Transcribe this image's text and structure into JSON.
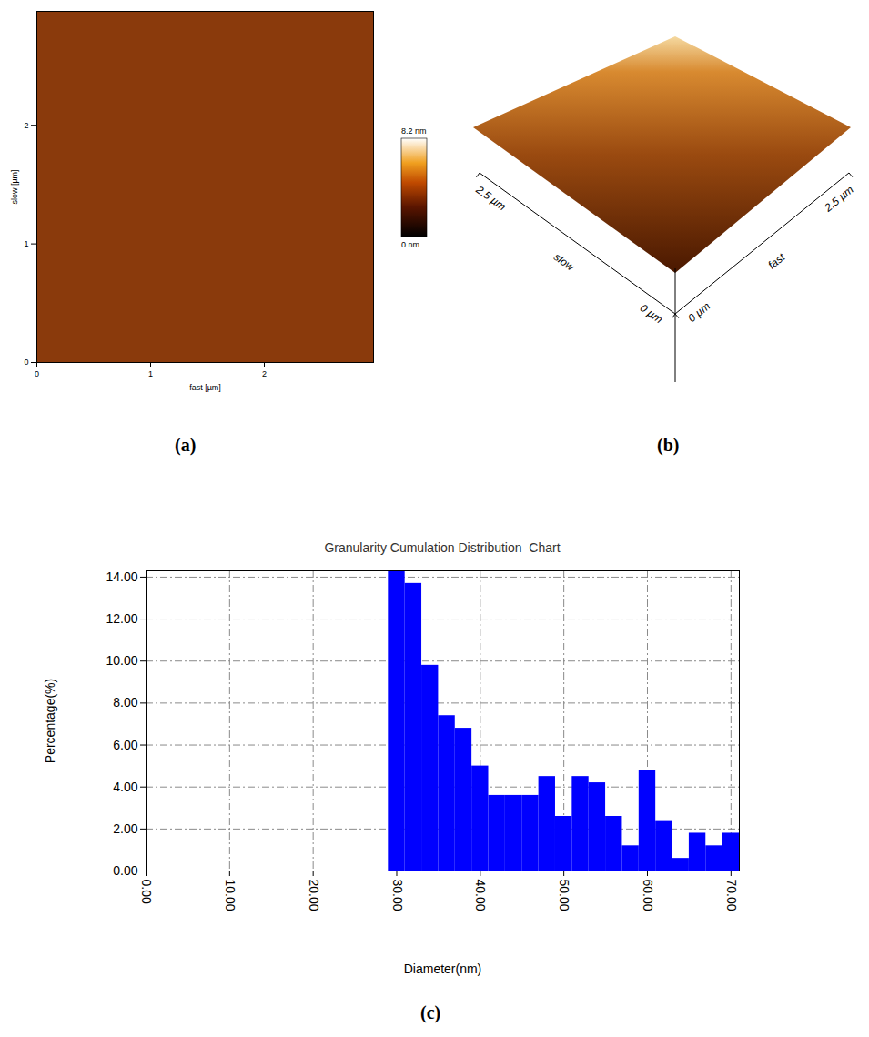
{
  "chart_data": [
    {
      "panel": "(a)",
      "type": "image",
      "x_label": "fast [µm]",
      "y_label": "slow [µm]",
      "xlim": [
        0,
        2.96
      ],
      "ylim": [
        0,
        2.96
      ],
      "xticks": [
        0,
        1,
        2
      ],
      "yticks": [
        0,
        1,
        2
      ],
      "colorbar": {
        "range": [
          0,
          8.2
        ],
        "ticks": [
          {
            "value": 0,
            "label": "0 nm"
          },
          {
            "value": 8.2,
            "label": "8.2 nm"
          }
        ]
      }
    },
    {
      "panel": "(b)",
      "type": "surface",
      "x_label": "fast",
      "y_label": "slow",
      "xlim": [
        0,
        2.5
      ],
      "ylim": [
        0,
        2.5
      ],
      "xticks": [
        {
          "value": 0,
          "label": "0 µm"
        },
        {
          "value": 2.5,
          "label": "2.5 µm"
        }
      ],
      "yticks": [
        {
          "value": 0,
          "label": "0 µm"
        },
        {
          "value": 2.5,
          "label": "2.5 µm"
        }
      ]
    },
    {
      "panel": "(c)",
      "type": "histogram",
      "title": "Granularity Cumulation Distribution  Chart",
      "x_label": "Diameter(nm)",
      "y_label": "Percentage(%)",
      "bins": [
        29,
        31,
        33,
        35,
        37,
        39,
        41,
        43,
        45,
        47,
        49,
        51,
        53,
        55,
        57,
        59,
        61,
        63,
        65,
        67,
        69,
        71
      ],
      "values": [
        14.3,
        13.7,
        9.8,
        7.4,
        6.8,
        5.0,
        3.6,
        3.6,
        3.6,
        4.5,
        2.6,
        4.5,
        4.2,
        2.6,
        1.2,
        4.8,
        2.4,
        0.6,
        1.8,
        1.2,
        1.8
      ],
      "color": "#0000ff",
      "xlim": [
        0,
        71
      ],
      "ylim": [
        0,
        14.3
      ],
      "xticks": [
        {
          "value": 0,
          "label": "0.00"
        },
        {
          "value": 10,
          "label": "10.00"
        },
        {
          "value": 20,
          "label": "20.00"
        },
        {
          "value": 30,
          "label": "30.00"
        },
        {
          "value": 40,
          "label": "40.00"
        },
        {
          "value": 50,
          "label": "50.00"
        },
        {
          "value": 60,
          "label": "60.00"
        },
        {
          "value": 70,
          "label": "70.00"
        }
      ],
      "yticks": [
        {
          "value": 0,
          "label": "0.00"
        },
        {
          "value": 2,
          "label": "2.00"
        },
        {
          "value": 4,
          "label": "4.00"
        },
        {
          "value": 6,
          "label": "6.00"
        },
        {
          "value": 8,
          "label": "8.00"
        },
        {
          "value": 10,
          "label": "10.00"
        },
        {
          "value": 12,
          "label": "12.00"
        },
        {
          "value": 14,
          "label": "14.00"
        }
      ],
      "grid": true
    }
  ]
}
